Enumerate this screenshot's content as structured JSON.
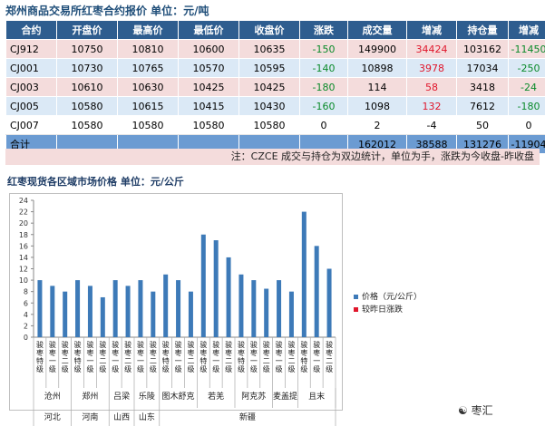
{
  "title": "郑州商品交易所红枣合约报价  单位：元/吨",
  "table": {
    "headers": [
      "合约",
      "开盘价",
      "最高价",
      "最低价",
      "收盘价",
      "涨跌",
      "成交量",
      "增减",
      "持仓量",
      "增减"
    ],
    "rows": [
      {
        "style": "r-pink",
        "cells": [
          "CJ912",
          "10750",
          "10810",
          "10600",
          "10635",
          "-150",
          "149900",
          "34424",
          "103162",
          "-11450"
        ]
      },
      {
        "style": "r-blue",
        "cells": [
          "CJ001",
          "10730",
          "10765",
          "10570",
          "10595",
          "-140",
          "10898",
          "3978",
          "17034",
          "-250"
        ]
      },
      {
        "style": "r-pink",
        "cells": [
          "CJ003",
          "10610",
          "10630",
          "10425",
          "10425",
          "-180",
          "114",
          "58",
          "3418",
          "-24"
        ]
      },
      {
        "style": "r-blue",
        "cells": [
          "CJ005",
          "10580",
          "10615",
          "10415",
          "10430",
          "-160",
          "1098",
          "132",
          "7612",
          "-180"
        ]
      },
      {
        "style": "r-white",
        "cells": [
          "CJ007",
          "10580",
          "10580",
          "10580",
          "10580",
          "0",
          "2",
          "-4",
          "50",
          "0"
        ]
      },
      {
        "style": "total",
        "cells": [
          "合计",
          "",
          "",
          "",
          "",
          "",
          "162012",
          "38588",
          "131276",
          "-11904"
        ]
      }
    ]
  },
  "note": "注：CZCE 成交与持仓为双边统计，单位为手，涨跌为今收盘-昨收盘",
  "chart_title": "红枣现货各区域市场价格   单位：元/公斤",
  "chart_data": {
    "type": "bar",
    "ylim": [
      0,
      24
    ],
    "yticks": [
      0,
      2,
      4,
      6,
      8,
      10,
      12,
      14,
      16,
      18,
      20,
      22,
      24
    ],
    "categories": [
      "特级",
      "一级",
      "二级",
      "特级",
      "一级",
      "二级",
      "一级",
      "二级",
      "一级",
      "二级",
      "特级",
      "一级",
      "二级",
      "特级",
      "一级",
      "二级",
      "特级",
      "一级",
      "二级",
      "一级",
      "二级",
      "特级",
      "一级",
      "二级"
    ],
    "category_prefix": "骏枣",
    "series": [
      {
        "name": "价格（元/公斤）",
        "color": "#3d7ab8",
        "values": [
          10,
          9,
          8,
          10,
          9,
          7,
          10,
          9,
          10,
          8,
          11,
          10,
          8,
          18,
          17,
          14,
          11,
          10,
          8.5,
          10,
          8,
          22,
          16,
          12
        ]
      },
      {
        "name": "较昨日涨跌",
        "color": "#e0162b",
        "values": [
          0,
          0,
          0,
          0,
          0,
          0,
          0,
          0,
          0,
          0,
          0,
          0,
          0,
          0,
          0,
          0,
          0,
          0,
          0,
          0,
          0,
          0,
          0,
          0
        ]
      }
    ],
    "cities": [
      {
        "name": "沧州",
        "span": 3
      },
      {
        "name": "郑州",
        "span": 3
      },
      {
        "name": "吕梁",
        "span": 2
      },
      {
        "name": "乐陵",
        "span": 2
      },
      {
        "name": "图木舒克",
        "span": 3
      },
      {
        "name": "若羌",
        "span": 3
      },
      {
        "name": "阿克苏",
        "span": 3
      },
      {
        "name": "麦盖提",
        "span": 2
      },
      {
        "name": "且末",
        "span": 3
      }
    ],
    "provinces": [
      {
        "name": "河北",
        "span": 3
      },
      {
        "name": "河南",
        "span": 3
      },
      {
        "name": "山西",
        "span": 2
      },
      {
        "name": "山东",
        "span": 2
      },
      {
        "name": "新疆",
        "span": 14
      }
    ],
    "legend_position": "right"
  },
  "watermark": "枣汇"
}
